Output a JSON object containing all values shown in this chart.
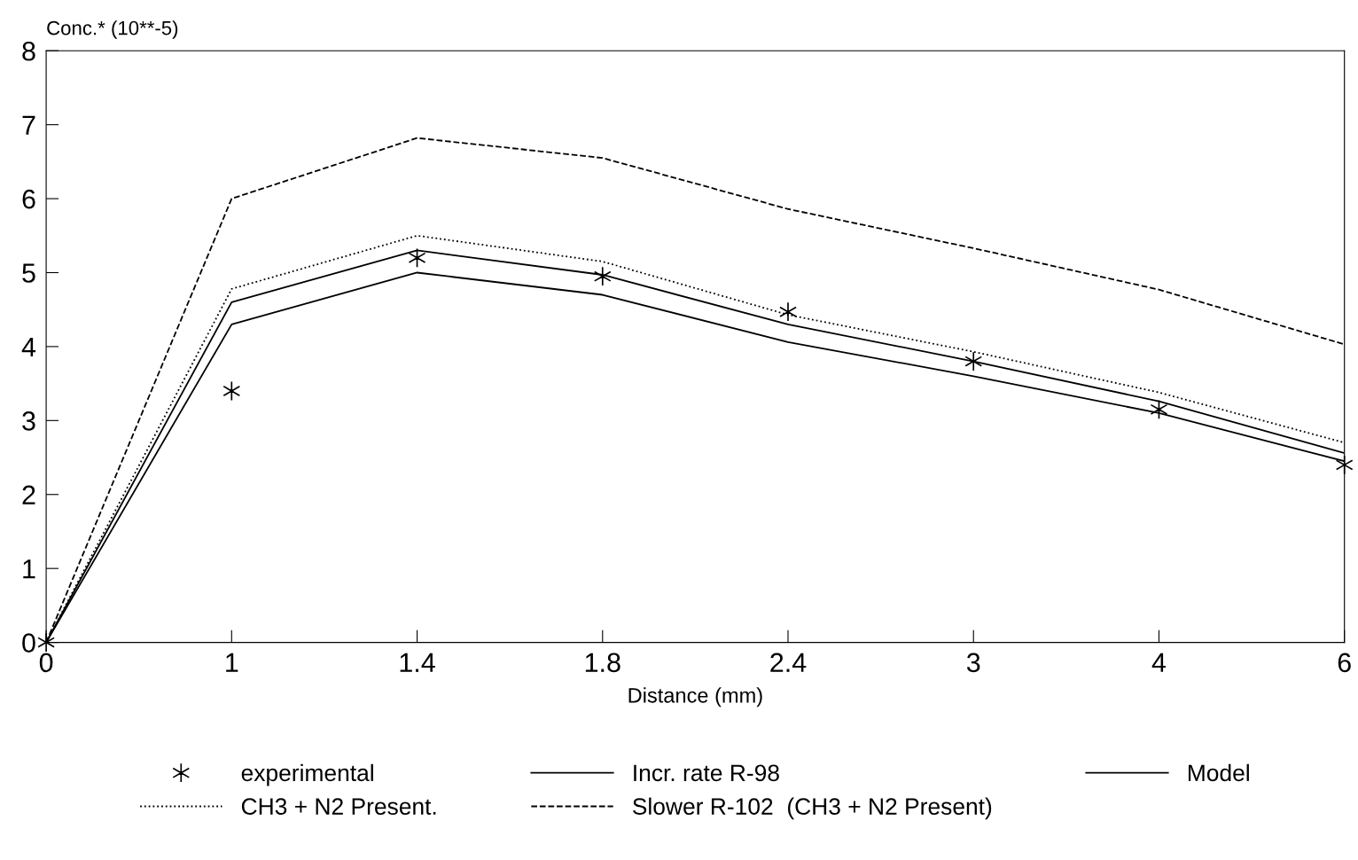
{
  "chart_data": {
    "type": "line",
    "xlabel": "Distance (mm)",
    "ylabel": "Conc.* (10**-5)",
    "categories": [
      "0",
      "1",
      "1.4",
      "1.8",
      "2.4",
      "3",
      "4",
      "6"
    ],
    "ylim": [
      0,
      8
    ],
    "yticks": [
      0,
      1,
      2,
      3,
      4,
      5,
      6,
      7,
      8
    ],
    "grid": false,
    "legend": "bottom",
    "series": [
      {
        "name": "experimental",
        "type": "scatter",
        "marker": "cross",
        "color": "#000000",
        "values": [
          0,
          3.4,
          5.2,
          4.95,
          4.47,
          3.8,
          3.15,
          2.4
        ]
      },
      {
        "name": "CH3 + N2 Present.",
        "line_style": "dotted",
        "color": "#000000",
        "values": [
          0,
          4.78,
          5.5,
          5.15,
          4.43,
          3.93,
          3.38,
          2.7
        ]
      },
      {
        "name": "Incr. rate R-98",
        "line_style": "solid",
        "color": "#000000",
        "values": [
          0,
          4.6,
          5.3,
          4.97,
          4.3,
          3.8,
          3.26,
          2.56
        ]
      },
      {
        "name": "Slower R-102  (CH3 + N2 Present)",
        "line_style": "dashed",
        "color": "#000000",
        "values": [
          0,
          6.0,
          6.82,
          6.55,
          5.86,
          5.33,
          4.77,
          4.03
        ]
      },
      {
        "name": "Model",
        "line_style": "solid",
        "color": "#000000",
        "values": [
          0,
          4.3,
          5.0,
          4.7,
          4.06,
          3.6,
          3.1,
          2.45
        ]
      }
    ]
  }
}
